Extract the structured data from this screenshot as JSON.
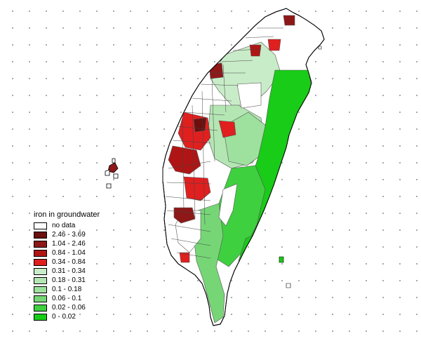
{
  "legend": {
    "title": "iron in groundwater",
    "classes": [
      {
        "label": "no data",
        "color": "#ffffff"
      },
      {
        "label": "2.46 - 3.69",
        "color": "#6b0f0f"
      },
      {
        "label": "1.04 - 2.46",
        "color": "#8e1818"
      },
      {
        "label": "0.84 - 1.04",
        "color": "#b01515"
      },
      {
        "label": "0.34 - 0.84",
        "color": "#e01f1f"
      },
      {
        "label": "0.31 - 0.34",
        "color": "#c8ecc8"
      },
      {
        "label": "0.18 - 0.31",
        "color": "#b4e6b4"
      },
      {
        "label": "0.1 - 0.18",
        "color": "#9ee09e"
      },
      {
        "label": "0.06 - 0.1",
        "color": "#76d676"
      },
      {
        "label": "0.02 - 0.06",
        "color": "#3fd03f"
      },
      {
        "label": "0 - 0.02",
        "color": "#18cc18"
      }
    ]
  }
}
